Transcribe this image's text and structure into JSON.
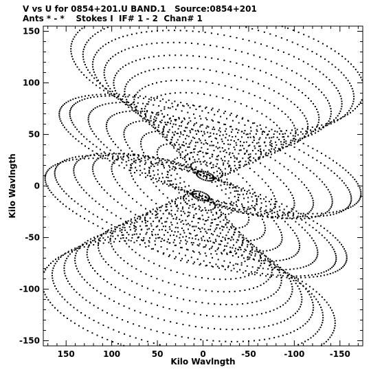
{
  "chart_data": {
    "type": "scatter",
    "title": "V vs U for 0854+201.U BAND.1   Source:0854+201",
    "subtitle": "Ants * - *    Stokes I  IF# 1 - 2  Chan# 1",
    "xlabel": "Kilo Wavlngth",
    "ylabel": "Kilo Wavlngth",
    "xlim": [
      175,
      -175
    ],
    "ylim": [
      -155,
      155
    ],
    "x_reversed": true,
    "xticks": [
      150,
      100,
      50,
      0,
      -50,
      -100,
      -150
    ],
    "xtick_labels": [
      "150",
      "100",
      "50",
      "0",
      "-50",
      "-100",
      "-150"
    ],
    "yticks": [
      -150,
      -100,
      -50,
      0,
      50,
      100,
      150
    ],
    "ytick_labels": [
      "-150",
      "-100",
      "-50",
      "0",
      "50",
      "100",
      "150"
    ],
    "grid": false,
    "marker_color": "#000000",
    "pattern": "symmetric uv-coverage ellipses",
    "tracks": [
      {
        "a": 10,
        "b": 4,
        "cx": 0,
        "cy": 10,
        "tilt": 15
      },
      {
        "a": 18,
        "b": 7,
        "cx": 0,
        "cy": 16,
        "tilt": 15
      },
      {
        "a": 26,
        "b": 10,
        "cx": 0,
        "cy": 22,
        "tilt": 14
      },
      {
        "a": 34,
        "b": 13,
        "cx": 0,
        "cy": 28,
        "tilt": 14
      },
      {
        "a": 44,
        "b": 16,
        "cx": 0,
        "cy": 36,
        "tilt": 13
      },
      {
        "a": 55,
        "b": 20,
        "cx": 0,
        "cy": 44,
        "tilt": 13
      },
      {
        "a": 66,
        "b": 24,
        "cx": 0,
        "cy": 52,
        "tilt": 12
      },
      {
        "a": 78,
        "b": 28,
        "cx": 0,
        "cy": 60,
        "tilt": 12
      },
      {
        "a": 90,
        "b": 32,
        "cx": 0,
        "cy": 68,
        "tilt": 11
      },
      {
        "a": 102,
        "b": 36,
        "cx": 0,
        "cy": 76,
        "tilt": 11
      },
      {
        "a": 114,
        "b": 40,
        "cx": 0,
        "cy": 84,
        "tilt": 10
      },
      {
        "a": 126,
        "b": 44,
        "cx": 0,
        "cy": 92,
        "tilt": 10
      },
      {
        "a": 138,
        "b": 48,
        "cx": 0,
        "cy": 100,
        "tilt": 9
      },
      {
        "a": 150,
        "b": 52,
        "cx": 0,
        "cy": 108,
        "tilt": 9
      },
      {
        "a": 162,
        "b": 56,
        "cx": 0,
        "cy": 114,
        "tilt": 8
      },
      {
        "a": 40,
        "b": 14,
        "cx": 0,
        "cy": 6,
        "tilt": 28
      },
      {
        "a": 60,
        "b": 20,
        "cx": 0,
        "cy": 10,
        "tilt": 26
      },
      {
        "a": 80,
        "b": 26,
        "cx": 0,
        "cy": 14,
        "tilt": 24
      },
      {
        "a": 100,
        "b": 30,
        "cx": 0,
        "cy": 18,
        "tilt": 22
      },
      {
        "a": 120,
        "b": 34,
        "cx": 0,
        "cy": 22,
        "tilt": 20
      },
      {
        "a": 140,
        "b": 38,
        "cx": 0,
        "cy": 26,
        "tilt": 18
      },
      {
        "a": 160,
        "b": 40,
        "cx": 0,
        "cy": 30,
        "tilt": 16
      },
      {
        "a": 170,
        "b": 42,
        "cx": 0,
        "cy": 32,
        "tilt": 14
      }
    ]
  }
}
